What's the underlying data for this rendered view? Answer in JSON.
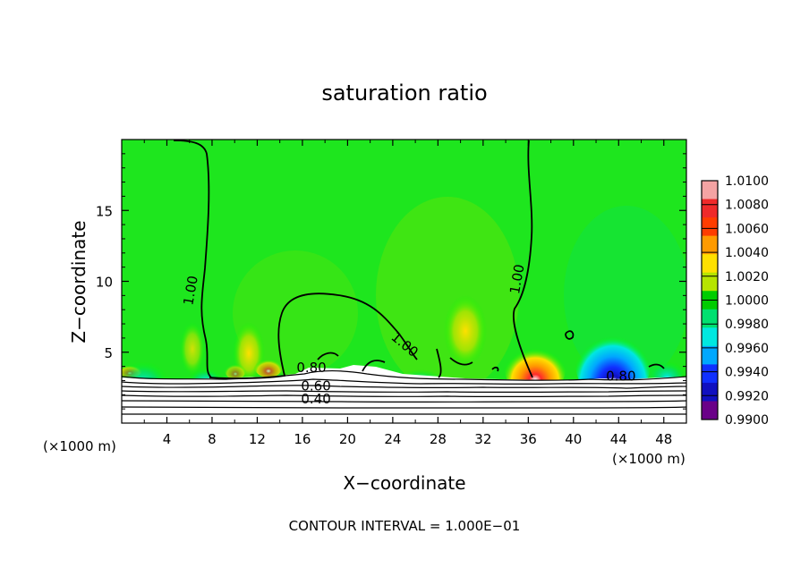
{
  "chart_data": {
    "type": "contour",
    "title": "saturation ratio",
    "xlabel": "X−coordinate",
    "ylabel": "Z−coordinate",
    "x_unit_left": "(×1000 m)",
    "x_unit_right": "(×1000 m)",
    "footer": "CONTOUR INTERVAL = 1.000E−01",
    "xlim": [
      0,
      50
    ],
    "ylim": [
      0,
      20
    ],
    "x_ticks": [
      "4",
      "8",
      "12",
      "16",
      "20",
      "24",
      "28",
      "32",
      "36",
      "40",
      "44",
      "48"
    ],
    "x_tick_values": [
      4,
      8,
      12,
      16,
      20,
      24,
      28,
      32,
      36,
      40,
      44,
      48
    ],
    "y_ticks": [
      "5",
      "10",
      "15"
    ],
    "y_tick_values": [
      5,
      10,
      15
    ],
    "contour_labels": [
      {
        "text": "1.00",
        "x": 6.5,
        "z": 9.3
      },
      {
        "text": "1.00",
        "x": 24.8,
        "z": 5.3
      },
      {
        "text": "1.00",
        "x": 35.4,
        "z": 10.1
      },
      {
        "text": "0.80",
        "x": 16.8,
        "z": 3.6
      },
      {
        "text": "0.60",
        "x": 17.2,
        "z": 2.3
      },
      {
        "text": "0.40",
        "x": 17.2,
        "z": 1.4
      },
      {
        "text": "0.80",
        "x": 44.2,
        "z": 3.0
      }
    ],
    "colorbar": {
      "levels": [
        "1.0100",
        "1.0080",
        "1.0060",
        "1.0040",
        "1.0020",
        "1.0000",
        "0.9980",
        "0.9960",
        "0.9940",
        "0.9920",
        "0.9900"
      ],
      "colors": [
        "#f4a3a3",
        "#ef2a2a",
        "#ff3d00",
        "#ff9a00",
        "#ffe000",
        "#b6e400",
        "#00cc00",
        "#00e070",
        "#00e8e0",
        "#00a8ff",
        "#1030ff",
        "#1010c0",
        "#6a0088"
      ]
    }
  }
}
